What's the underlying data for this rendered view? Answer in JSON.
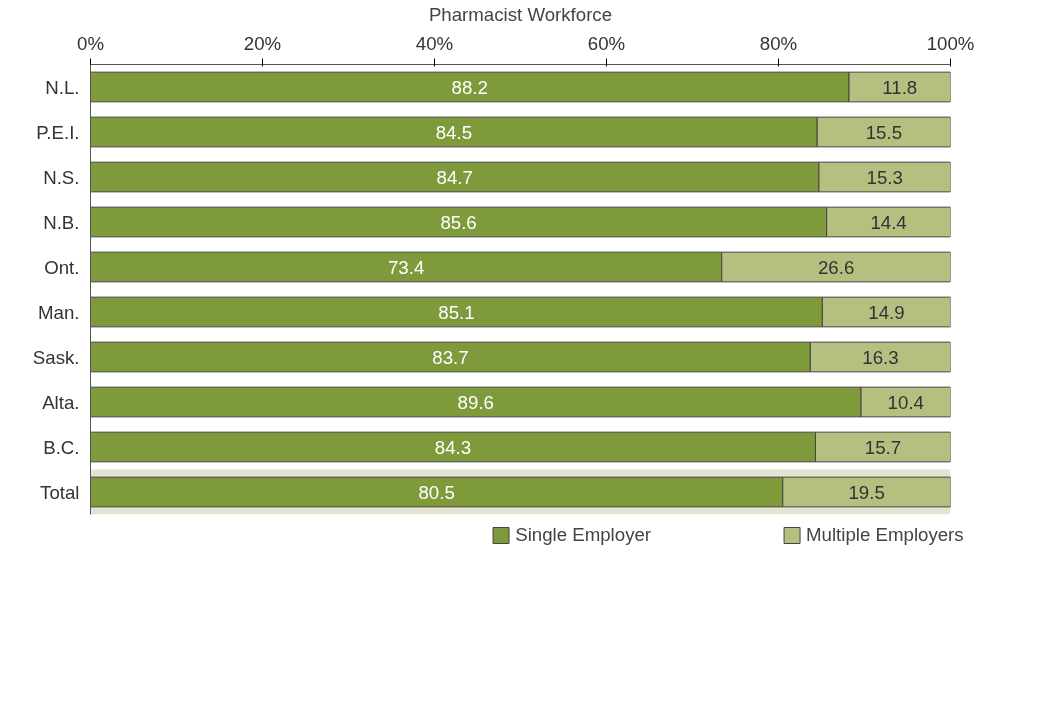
{
  "chart_data": {
    "type": "bar",
    "orientation": "horizontal",
    "stacked": true,
    "xlabel": "Pharmacist Workforce",
    "categories": [
      "N.L.",
      "P.E.I.",
      "N.S.",
      "N.B.",
      "Ont.",
      "Man.",
      "Sask.",
      "Alta.",
      "B.C.",
      "Total"
    ],
    "series": [
      {
        "name": "Single Employer",
        "color": "#7f9a3a",
        "values": [
          88.2,
          84.5,
          84.7,
          85.6,
          73.4,
          85.1,
          83.7,
          89.6,
          84.3,
          80.5
        ]
      },
      {
        "name": "Multiple Employers",
        "color": "#b4bf80",
        "values": [
          11.8,
          15.5,
          15.3,
          14.4,
          26.6,
          14.9,
          16.3,
          10.4,
          15.7,
          19.5
        ]
      }
    ],
    "xlim": [
      0,
      100
    ],
    "xticks": [
      {
        "value": 0,
        "label": "0%"
      },
      {
        "value": 20,
        "label": "20%"
      },
      {
        "value": 40,
        "label": "40%"
      },
      {
        "value": 60,
        "label": "60%"
      },
      {
        "value": 80,
        "label": "80%"
      },
      {
        "value": 100,
        "label": "100%"
      }
    ],
    "bands": [
      {
        "axis": "y",
        "from": "Total",
        "to": "Total",
        "color": "#e3e4d2"
      }
    ],
    "data_labels": true,
    "grid": false,
    "legend": "bottom"
  }
}
